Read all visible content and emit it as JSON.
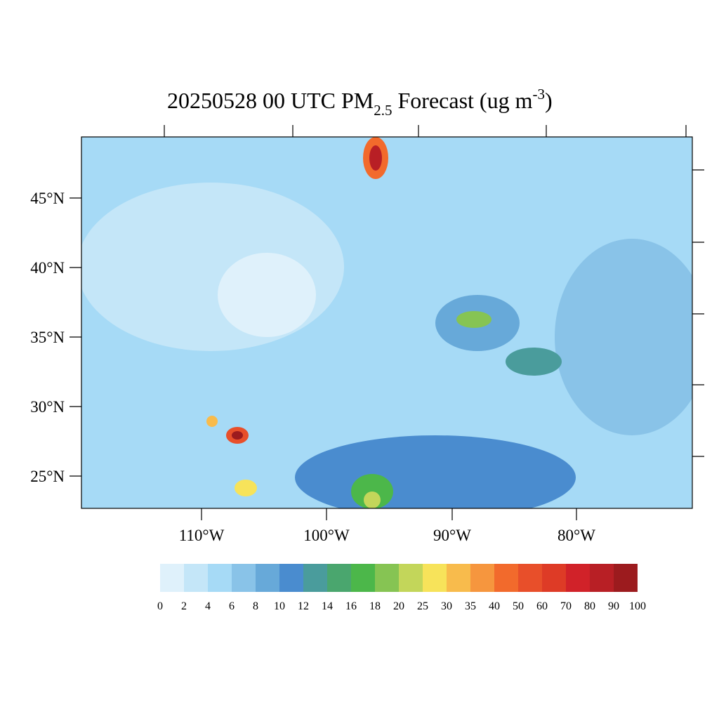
{
  "header": {
    "title_main": "20250528 00 UTC PM",
    "title_sub": "2.5",
    "title_after": " Forecast (ug m",
    "title_sup": "-3",
    "title_end": ")"
  },
  "map": {
    "lat_labels": [
      "45°N",
      "40°N",
      "35°N",
      "30°N",
      "25°N"
    ],
    "lon_labels": [
      "110°W",
      "100°W",
      "90°W",
      "80°W"
    ]
  },
  "colorbar": {
    "labels": [
      0,
      2,
      4,
      6,
      8,
      10,
      12,
      14,
      16,
      18,
      20,
      25,
      30,
      35,
      40,
      50,
      60,
      70,
      80,
      90,
      100
    ],
    "colors": [
      "#dff1fb",
      "#c4e6f8",
      "#a6daf6",
      "#89c3e8",
      "#67a9d9",
      "#4a8ccf",
      "#4a9c9c",
      "#4aa66e",
      "#4cb74a",
      "#86c453",
      "#c3d65a",
      "#f7e35a",
      "#f8bb4c",
      "#f6963e",
      "#f26a2c",
      "#e84f2a",
      "#de3b26",
      "#d12229",
      "#b81f25",
      "#9c1b1e"
    ]
  }
}
